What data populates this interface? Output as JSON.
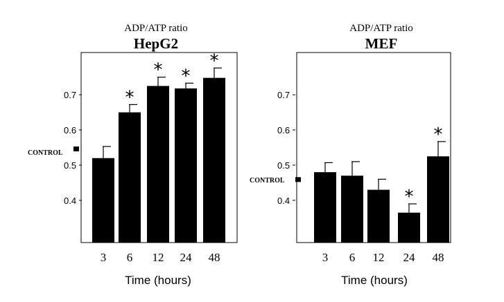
{
  "chart_data": [
    {
      "type": "bar",
      "subtitle": "ADP/ATP ratio",
      "title": "HepG2",
      "xlabel": "Time (hours)",
      "ylabel": "",
      "categories": [
        "3",
        "6",
        "12",
        "24",
        "48"
      ],
      "values": [
        0.52,
        0.65,
        0.725,
        0.718,
        0.748
      ],
      "errors": [
        0.033,
        0.022,
        0.025,
        0.015,
        0.028
      ],
      "significant": [
        false,
        true,
        true,
        true,
        true
      ],
      "significance_marker": "*",
      "yticks": [
        0.4,
        0.5,
        0.6,
        0.7
      ],
      "ylim": [
        0.28,
        0.82
      ],
      "control_label": "CONTROL",
      "control_value": 0.546,
      "grid": false,
      "bar_color": "#000000"
    },
    {
      "type": "bar",
      "subtitle": "ADP/ATP ratio",
      "title": "MEF",
      "xlabel": "Time (hours)",
      "ylabel": "",
      "categories": [
        "3",
        "6",
        "12",
        "24",
        "48"
      ],
      "values": [
        0.48,
        0.47,
        0.43,
        0.365,
        0.525
      ],
      "errors": [
        0.027,
        0.04,
        0.03,
        0.025,
        0.042
      ],
      "significant": [
        false,
        false,
        false,
        true,
        true
      ],
      "significance_marker": "*",
      "yticks": [
        0.4,
        0.5,
        0.6,
        0.7
      ],
      "ylim": [
        0.28,
        0.82
      ],
      "control_label": "CONTROL",
      "control_value": 0.459,
      "grid": false,
      "bar_color": "#000000"
    }
  ]
}
